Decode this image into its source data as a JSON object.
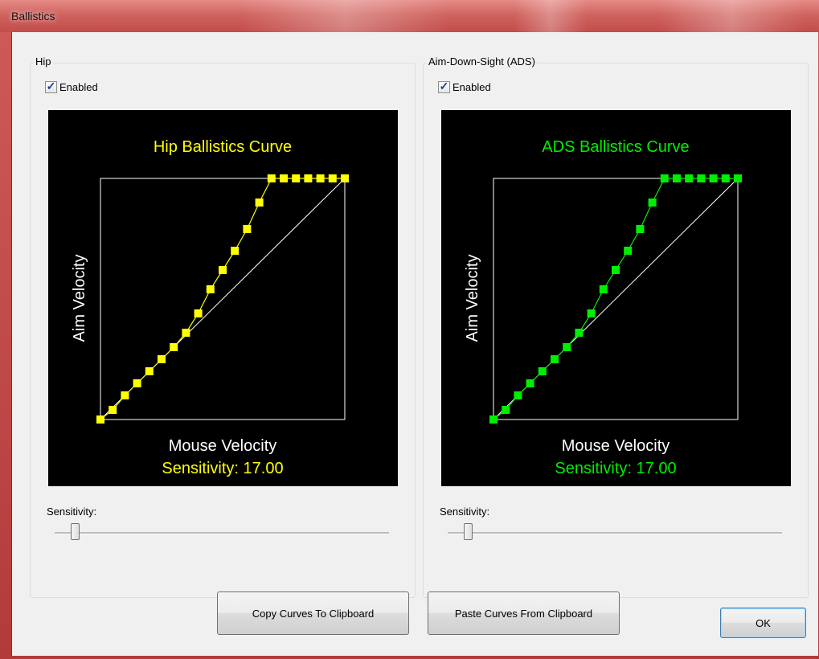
{
  "window": {
    "title": "Ballistics"
  },
  "panels": [
    {
      "group_label": "Hip",
      "enabled_label": "Enabled",
      "enabled": true,
      "sensitivity_label": "Sensitivity:",
      "slider_fraction": 0.05,
      "chart_data": {
        "type": "line",
        "title": "Hip Ballistics Curve",
        "xlabel": "Mouse Velocity",
        "ylabel": "Aim Velocity",
        "footer": "Sensitivity: 17.00",
        "color": "#ffff00",
        "reference_line": "diagonal",
        "x": [
          0,
          0.05,
          0.1,
          0.15,
          0.2,
          0.25,
          0.3,
          0.35,
          0.4,
          0.45,
          0.5,
          0.55,
          0.6,
          0.65,
          0.7,
          0.75,
          0.8,
          0.85,
          0.9,
          0.95,
          1.0
        ],
        "y": [
          0,
          0.04,
          0.1,
          0.15,
          0.2,
          0.25,
          0.3,
          0.36,
          0.44,
          0.54,
          0.62,
          0.7,
          0.79,
          0.9,
          1.0,
          1.0,
          1.0,
          1.0,
          1.0,
          1.0,
          1.0
        ],
        "xlim": [
          0,
          1
        ],
        "ylim": [
          0,
          1
        ]
      }
    },
    {
      "group_label": "Aim-Down-Sight (ADS)",
      "enabled_label": "Enabled",
      "enabled": true,
      "sensitivity_label": "Sensitivity:",
      "slider_fraction": 0.05,
      "chart_data": {
        "type": "line",
        "title": "ADS Ballistics Curve",
        "xlabel": "Mouse Velocity",
        "ylabel": "Aim Velocity",
        "footer": "Sensitivity: 17.00",
        "color": "#00ee00",
        "reference_line": "diagonal",
        "x": [
          0,
          0.05,
          0.1,
          0.15,
          0.2,
          0.25,
          0.3,
          0.35,
          0.4,
          0.45,
          0.5,
          0.55,
          0.6,
          0.65,
          0.7,
          0.75,
          0.8,
          0.85,
          0.9,
          0.95,
          1.0
        ],
        "y": [
          0,
          0.04,
          0.1,
          0.15,
          0.2,
          0.25,
          0.3,
          0.36,
          0.44,
          0.54,
          0.62,
          0.7,
          0.79,
          0.9,
          1.0,
          1.0,
          1.0,
          1.0,
          1.0,
          1.0,
          1.0
        ],
        "xlim": [
          0,
          1
        ],
        "ylim": [
          0,
          1
        ]
      }
    }
  ],
  "buttons": {
    "copy": "Copy Curves To Clipboard",
    "paste": "Paste Curves From Clipboard",
    "ok": "OK"
  },
  "colors": {
    "frame": "#c24c4a",
    "plot_background": "#000000",
    "axis": "#ffffff"
  }
}
